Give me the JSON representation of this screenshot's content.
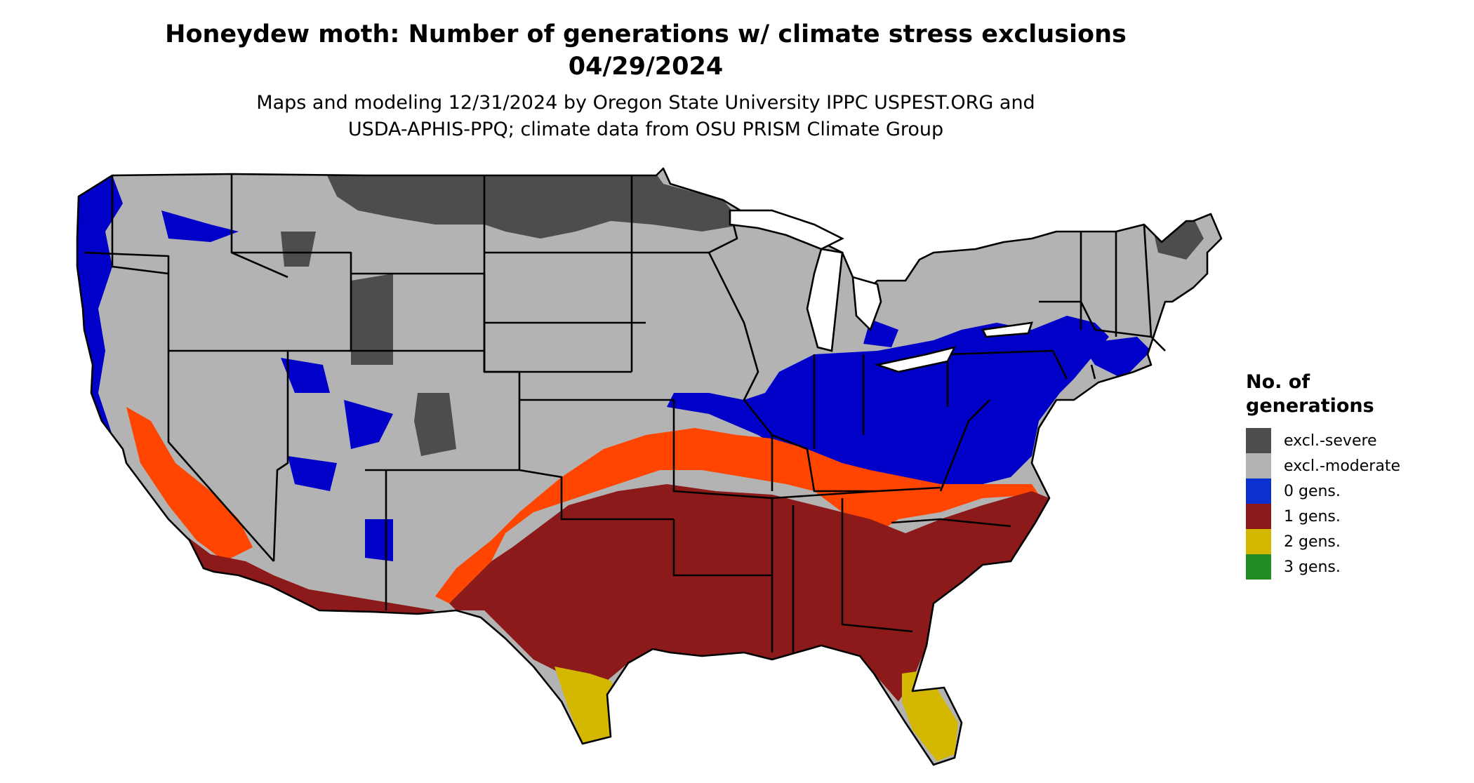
{
  "header": {
    "title": "Honeydew moth: Number of generations w/ climate stress exclusions",
    "date": "04/29/2024",
    "subtitle_line1": "Maps and modeling 12/31/2024 by Oregon State University IPPC USPEST.ORG and",
    "subtitle_line2": "USDA-APHIS-PPQ; climate data from OSU PRISM Climate Group"
  },
  "legend": {
    "title": "No. of generations",
    "items": [
      {
        "label": "excl.-severe",
        "color": "#4d4d4d"
      },
      {
        "label": "excl.-moderate",
        "color": "#b3b3b3"
      },
      {
        "label": "0 gens.",
        "color": "#0a30d0"
      },
      {
        "label": "1 gens.",
        "color": "#8c1a1a"
      },
      {
        "label": "2 gens.",
        "color": "#d4b800"
      },
      {
        "label": "3 gens.",
        "color": "#238b23"
      }
    ]
  },
  "map": {
    "colors": {
      "excl_severe": "#4d4d4d",
      "excl_moderate": "#b3b3b3",
      "gens_0": "#0000c8",
      "gens_1": "#8c1a1a",
      "gens_1_light": "#ff4500",
      "gens_2": "#d4b800",
      "gens_3": "#1a7a1a",
      "border": "#000000"
    }
  }
}
